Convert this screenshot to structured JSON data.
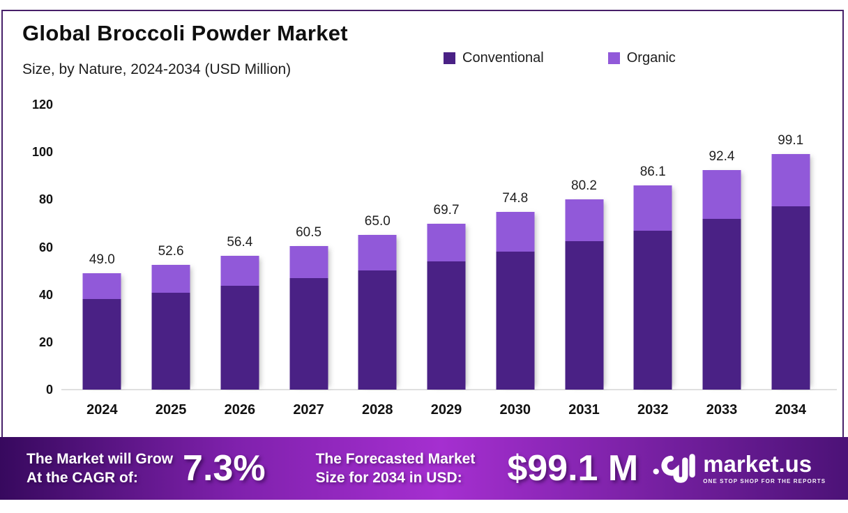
{
  "header": {
    "title": "Global Broccoli Powder Market",
    "subtitle": "Size, by Nature, 2024-2034 (USD Million)"
  },
  "legend": {
    "items": [
      {
        "label": "Conventional",
        "color": "#4a2185"
      },
      {
        "label": "Organic",
        "color": "#9159d9"
      }
    ]
  },
  "chart_data": {
    "type": "bar",
    "stacked": true,
    "title": "Global Broccoli Powder Market Size, by Nature, 2024-2034 (USD Million)",
    "categories": [
      "2024",
      "2025",
      "2026",
      "2027",
      "2028",
      "2029",
      "2030",
      "2031",
      "2032",
      "2033",
      "2034"
    ],
    "series": [
      {
        "name": "Conventional",
        "color": "#4a2185",
        "values": [
          38.0,
          40.9,
          43.8,
          46.9,
          50.3,
          54.0,
          58.0,
          62.4,
          67.0,
          72.0,
          77.2
        ]
      },
      {
        "name": "Organic",
        "color": "#9159d9",
        "values": [
          11.0,
          11.7,
          12.6,
          13.6,
          14.7,
          15.7,
          16.8,
          17.8,
          19.1,
          20.4,
          21.9
        ]
      }
    ],
    "totals": [
      49.0,
      52.6,
      56.4,
      60.5,
      65.0,
      69.7,
      74.8,
      80.2,
      86.1,
      92.4,
      99.1
    ],
    "total_labels": [
      "49.0",
      "52.6",
      "56.4",
      "60.5",
      "65.0",
      "69.7",
      "74.8",
      "80.2",
      "86.1",
      "92.4",
      "99.1"
    ],
    "xlabel": "",
    "ylabel": "",
    "ylim": [
      0,
      120
    ],
    "yticks": [
      0,
      20,
      40,
      60,
      80,
      100,
      120
    ],
    "grid": false,
    "legend_position": "top"
  },
  "footer": {
    "growth_line1": "The Market will Grow",
    "growth_line2": "At the CAGR of:",
    "cagr_value": "7.3%",
    "forecast_line1": "The Forecasted Market",
    "forecast_line2": "Size for 2034 in USD:",
    "forecast_value": "$99.1 M",
    "brand_name": "market.us",
    "brand_tagline": "ONE STOP SHOP FOR THE REPORTS"
  },
  "colors": {
    "conventional": "#4a2185",
    "organic": "#9159d9",
    "card_border": "#472069",
    "axis_line": "#dfdfdf",
    "banner_gradient": [
      "#37095e",
      "#8021ad",
      "#a52fd0",
      "#7d22a8",
      "#4c1277"
    ]
  }
}
